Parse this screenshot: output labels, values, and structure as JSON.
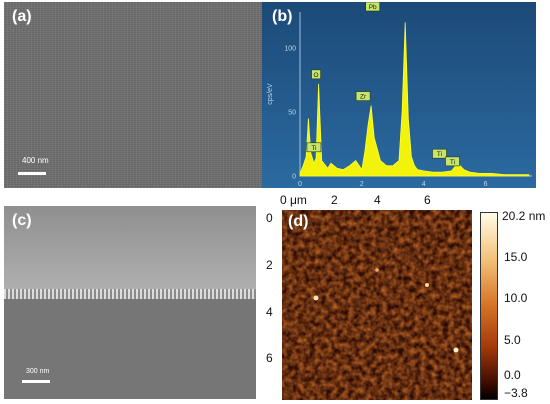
{
  "panels": {
    "a": {
      "label": "(a)",
      "scalebar": "400 nm"
    },
    "b": {
      "label": "(b)",
      "ylabel": "cps/eV",
      "yticks": [
        "0",
        "50",
        "100"
      ],
      "xticks": [
        "0",
        "2",
        "4",
        "6"
      ],
      "element_labels": [
        "Pb",
        "O",
        "Zr",
        "Ti",
        "Ti",
        "Ti"
      ]
    },
    "c": {
      "label": "(c)",
      "scalebar": "300 nm"
    },
    "d": {
      "label": "(d)",
      "top_ticks": [
        "0 μm",
        "2",
        "4",
        "6"
      ],
      "left_ticks": [
        "0",
        "2",
        "4",
        "6"
      ],
      "colorbar_ticks": [
        "20.2 nm",
        "15.0",
        "10.0",
        "5.0",
        "0.0",
        "−3.8"
      ]
    }
  },
  "chart_data": {
    "type": "line",
    "title": "",
    "xlabel": "",
    "ylabel": "cps/eV",
    "xlim": [
      0,
      7.5
    ],
    "ylim": [
      0,
      125
    ],
    "x": [
      0.0,
      0.1,
      0.2,
      0.27,
      0.35,
      0.45,
      0.52,
      0.6,
      0.7,
      0.8,
      0.9,
      1.0,
      1.2,
      1.4,
      1.6,
      1.8,
      2.0,
      2.1,
      2.2,
      2.3,
      2.4,
      2.6,
      2.8,
      3.0,
      3.2,
      3.3,
      3.4,
      3.5,
      3.6,
      3.7,
      3.8,
      4.0,
      4.3,
      4.6,
      4.9,
      5.1,
      5.3,
      5.5,
      5.8,
      6.2,
      6.6,
      7.0,
      7.4
    ],
    "series": [
      {
        "values": [
          2,
          8,
          15,
          45,
          18,
          10,
          14,
          72,
          12,
          9,
          6,
          10,
          6,
          5,
          8,
          12,
          5,
          20,
          40,
          55,
          30,
          12,
          8,
          8,
          12,
          50,
          120,
          45,
          15,
          8,
          5,
          4,
          3,
          3,
          4,
          10,
          5,
          3,
          2,
          2,
          1,
          1,
          1
        ]
      }
    ],
    "peaks": [
      {
        "label": "Pb",
        "x": 2.35,
        "y": 125
      },
      {
        "label": "O",
        "x": 0.52,
        "y": 72
      },
      {
        "label": "Zr",
        "x": 2.04,
        "y": 55
      },
      {
        "label": "Ti",
        "x": 0.45,
        "y": 15
      },
      {
        "label": "Ti",
        "x": 4.51,
        "y": 10
      },
      {
        "label": "Ti",
        "x": 4.93,
        "y": 4
      }
    ]
  }
}
